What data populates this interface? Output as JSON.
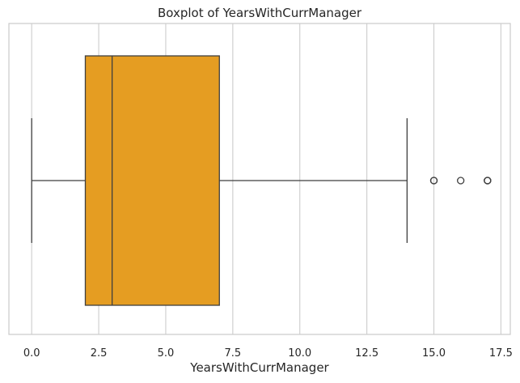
{
  "chart_data": {
    "type": "boxplot",
    "orientation": "horizontal",
    "title": "Boxplot of YearsWithCurrManager",
    "xlabel": "YearsWithCurrManager",
    "ylabel": "",
    "xlim": [
      -0.85,
      17.85
    ],
    "xticks": [
      0.0,
      2.5,
      5.0,
      7.5,
      10.0,
      12.5,
      15.0,
      17.5
    ],
    "xtick_labels": [
      "0.0",
      "2.5",
      "5.0",
      "7.5",
      "10.0",
      "12.5",
      "15.0",
      "17.5"
    ],
    "grid": true,
    "box_color": "#e59d22",
    "line_color": "#3f3f3f",
    "grid_color": "#cccccc",
    "spine_color": "#cccccc",
    "box": {
      "whisker_low": 0,
      "q1": 2,
      "median": 3,
      "q3": 7,
      "whisker_high": 14
    },
    "outliers": [
      15,
      15,
      16,
      17,
      17,
      17
    ]
  }
}
